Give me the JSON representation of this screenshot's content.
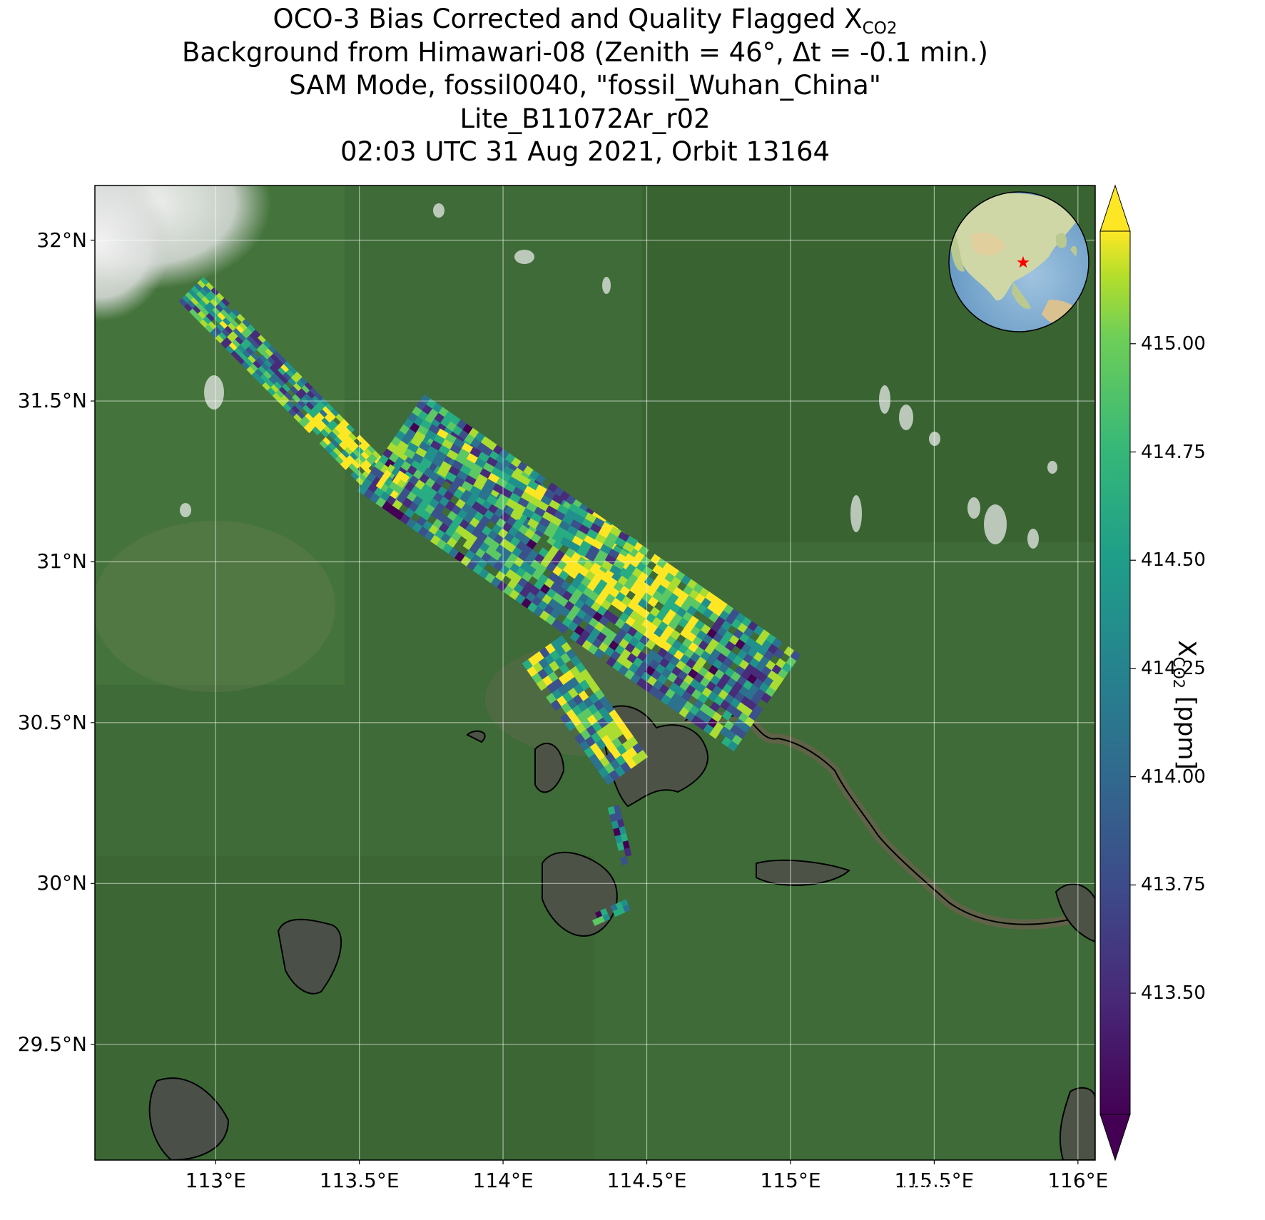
{
  "title": {
    "line1_prefix": "OCO-3 Bias Corrected and Quality Flagged X",
    "line1_sub": "CO2",
    "line2": "Background from Himawari-08 (Zenith = 46°, Δt = -0.1 min.)",
    "line3": "SAM Mode, fossil0040, \"fossil_Wuhan_China\"",
    "line4": "Lite_B11072Ar_r02",
    "line5": "02:03 UTC 31 Aug 2021, Orbit 13164"
  },
  "map": {
    "lon_range": [
      112.58,
      116.06
    ],
    "lat_range": [
      29.14,
      32.17
    ],
    "lat_ticks": [
      {
        "value": 32.0,
        "label": "32°N"
      },
      {
        "value": 31.5,
        "label": "31.5°N"
      },
      {
        "value": 31.0,
        "label": "31°N"
      },
      {
        "value": 30.5,
        "label": "30.5°N"
      },
      {
        "value": 30.0,
        "label": "30°N"
      },
      {
        "value": 29.5,
        "label": "29.5°N"
      }
    ],
    "lon_ticks": [
      {
        "value": 113.0,
        "label": "113°E"
      },
      {
        "value": 113.5,
        "label": "113.5°E"
      },
      {
        "value": 114.0,
        "label": "114°E"
      },
      {
        "value": 114.5,
        "label": "114.5°E"
      },
      {
        "value": 115.0,
        "label": "115°E"
      },
      {
        "value": 115.5,
        "label": "115.5°E"
      },
      {
        "value": 116.0,
        "label": "116°E"
      }
    ],
    "gridlines": true,
    "background_colors": {
      "vegetation": "#3e6b37",
      "clouds": "#e9eaeb",
      "water": "#4c5346",
      "coastline": "#000000"
    },
    "target_marker": {
      "lon": 114.3,
      "lat": 30.6,
      "color": "#ff0000",
      "symbol": "star"
    }
  },
  "colorbar": {
    "label_prefix": "X",
    "label_sub": "CO2",
    "label_suffix": " [ppm]",
    "min": 413.22,
    "max": 415.26,
    "extend": "both",
    "colormap": "viridis",
    "ticks": [
      {
        "value": 415.0,
        "label": "415.00"
      },
      {
        "value": 414.75,
        "label": "414.75"
      },
      {
        "value": 414.5,
        "label": "414.50"
      },
      {
        "value": 414.25,
        "label": "414.25"
      },
      {
        "value": 414.0,
        "label": "414.00"
      },
      {
        "value": 413.75,
        "label": "413.75"
      },
      {
        "value": 413.5,
        "label": "413.50"
      }
    ]
  },
  "footer": {
    "created": "Created 2 May 2025"
  }
}
